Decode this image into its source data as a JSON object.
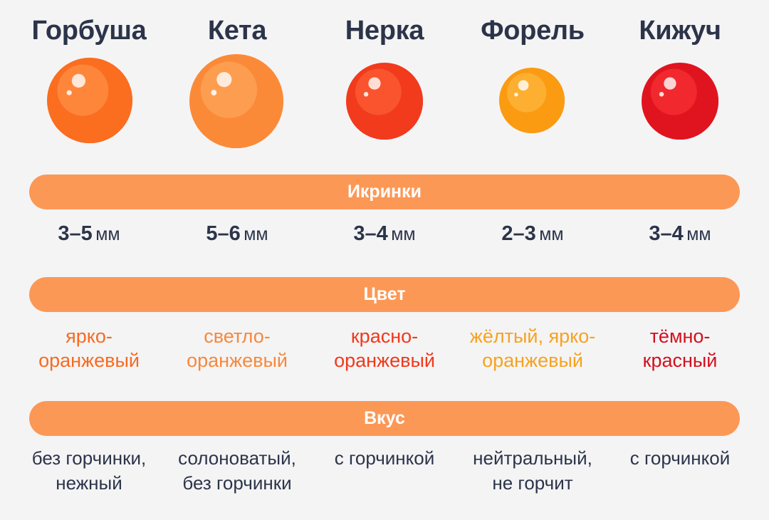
{
  "fish": [
    {
      "name": "Горбуша",
      "size_value": "3–5",
      "size_unit": "мм",
      "color_line1": "ярко-",
      "color_line2": "оранжевый",
      "color_hex": "#f86a1f",
      "taste_line1": "без горчинки,",
      "taste_line2": "нежный"
    },
    {
      "name": "Кета",
      "size_value": "5–6",
      "size_unit": "мм",
      "color_line1": "светло-",
      "color_line2": "оранжевый",
      "color_hex": "#f7883c",
      "taste_line1": "солоноватый,",
      "taste_line2": "без горчинки"
    },
    {
      "name": "Нерка",
      "size_value": "3–4",
      "size_unit": "мм",
      "color_line1": "красно-",
      "color_line2": "оранжевый",
      "color_hex": "#f2381a",
      "taste_line1": "с горчинкой",
      "taste_line2": ""
    },
    {
      "name": "Форель",
      "size_value": "2–3",
      "size_unit": "мм",
      "color_line1": "жёлтый, ярко-",
      "color_line2": "оранжевый",
      "color_hex": "#f7a21e",
      "taste_line1": "нейтральный,",
      "taste_line2": "не горчит"
    },
    {
      "name": "Кижуч",
      "size_value": "3–4",
      "size_unit": "мм",
      "color_line1": "тёмно-",
      "color_line2": "красный",
      "color_hex": "#d3101e",
      "taste_line1": "с горчинкой",
      "taste_line2": ""
    }
  ],
  "bands": {
    "eggs": "Икринки",
    "color": "Цвет",
    "taste": "Вкус"
  },
  "egg_colors": [
    {
      "base": "#fb6d1f",
      "dark": "#f04e12",
      "light": "#ff9a50"
    },
    {
      "base": "#fb8a38",
      "dark": "#f7731f",
      "light": "#ffad62"
    },
    {
      "base": "#f23a1d",
      "dark": "#b8111c",
      "light": "#ff6a3a"
    },
    {
      "base": "#fb9b12",
      "dark": "#f27a0f",
      "light": "#ffc04a"
    },
    {
      "base": "#e0141f",
      "dark": "#a70b1c",
      "light": "#ff3a3a"
    }
  ],
  "palette": {
    "background": "#f4f4f5",
    "band": "#fc9856",
    "text_dark": "#2c3449"
  }
}
